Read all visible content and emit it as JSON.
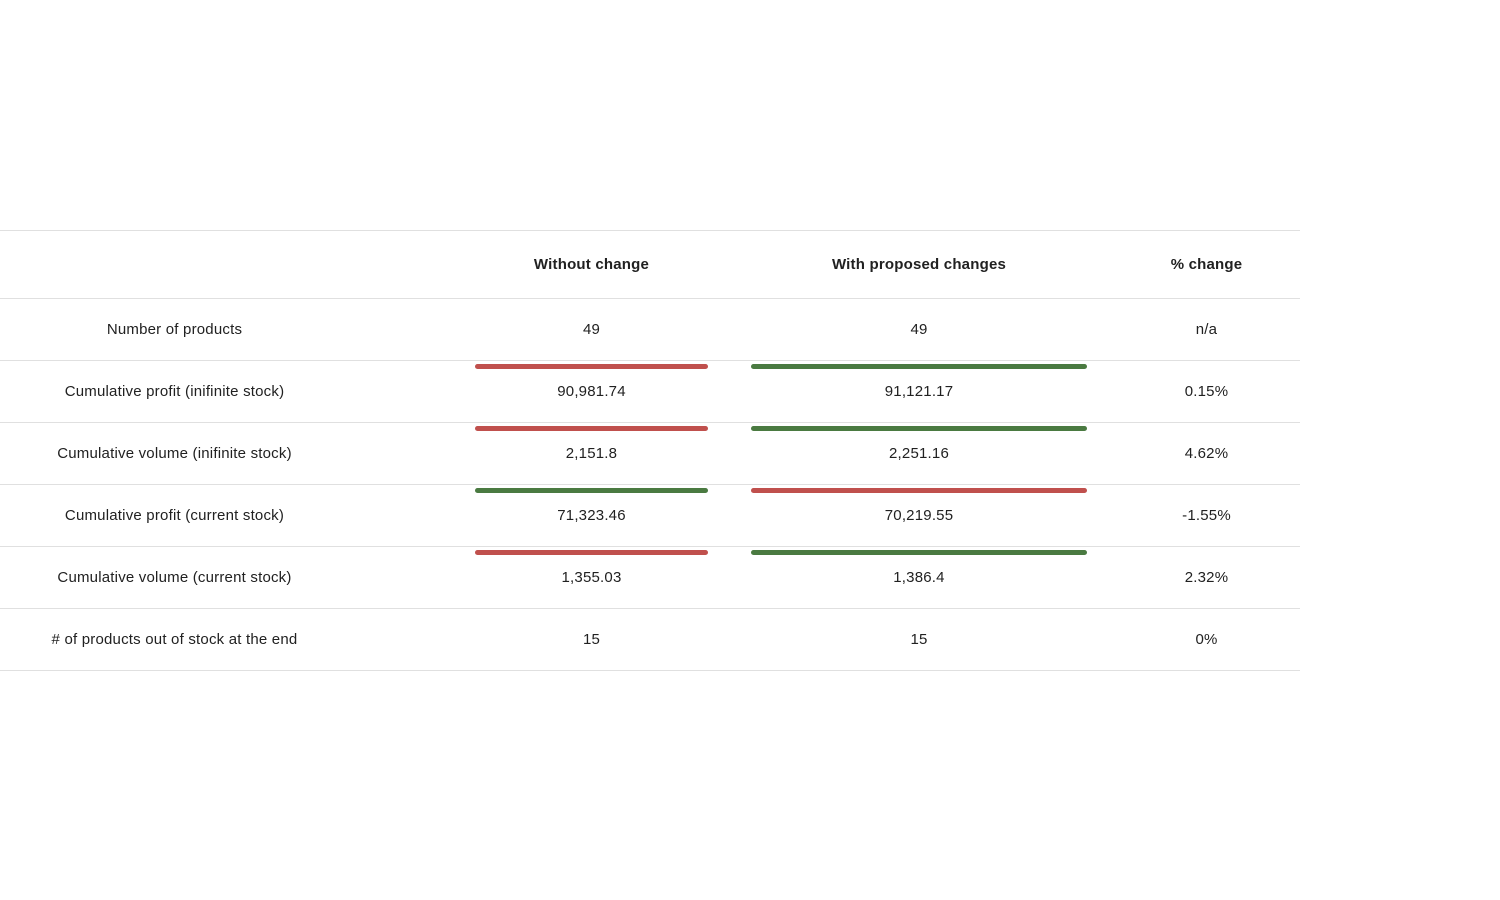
{
  "table": {
    "headers": {
      "label": "",
      "without": "Without change",
      "with": "With proposed changes",
      "pct": "% change"
    },
    "colors": {
      "red": "#c0504d",
      "green": "#4a7a41"
    },
    "rows": [
      {
        "label": "Number of products",
        "without": "49",
        "with": "49",
        "pct": "n/a",
        "without_bar": null,
        "with_bar": null
      },
      {
        "label": "Cumulative profit (inifinite stock)",
        "without": "90,981.74",
        "with": "91,121.17",
        "pct": "0.15%",
        "without_bar": "red",
        "with_bar": "green"
      },
      {
        "label": "Cumulative volume (inifinite stock)",
        "without": "2,151.8",
        "with": "2,251.16",
        "pct": "4.62%",
        "without_bar": "red",
        "with_bar": "green"
      },
      {
        "label": "Cumulative profit (current stock)",
        "without": "71,323.46",
        "with": "70,219.55",
        "pct": "-1.55%",
        "without_bar": "green",
        "with_bar": "red"
      },
      {
        "label": "Cumulative volume (current stock)",
        "without": "1,355.03",
        "with": "1,386.4",
        "pct": "2.32%",
        "without_bar": "red",
        "with_bar": "green"
      },
      {
        "label": "# of products out of stock at the end",
        "without": "15",
        "with": "15",
        "pct": "0%",
        "without_bar": null,
        "with_bar": null
      }
    ]
  }
}
